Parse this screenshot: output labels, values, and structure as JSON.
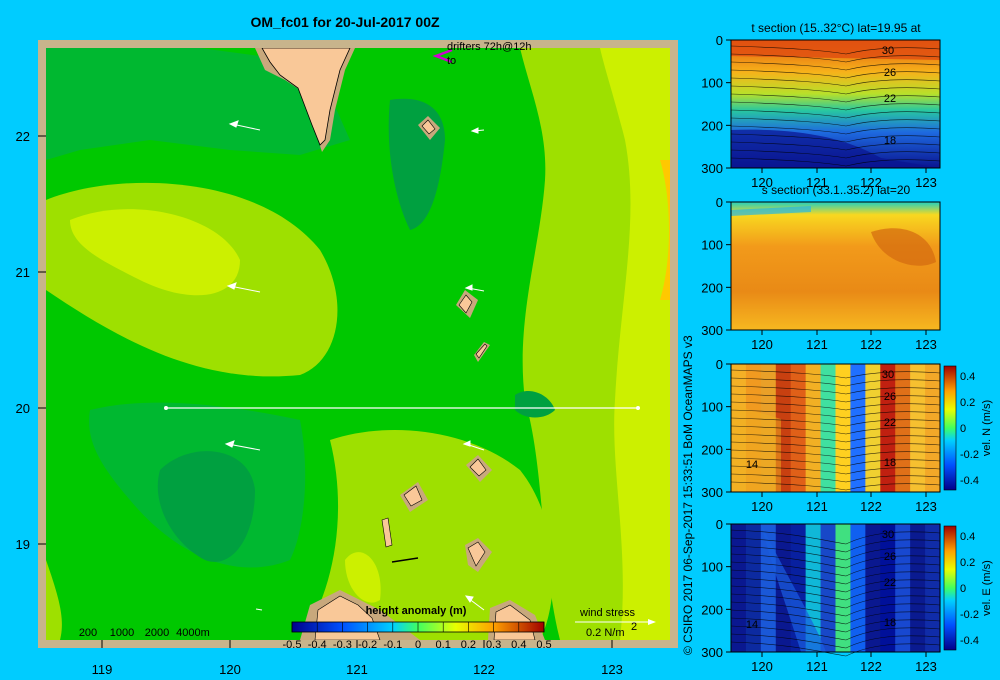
{
  "title": "OM_fc01 for 20-Jul-2017 00Z",
  "credit": "© CSIRO 2017   06-Sep-2017 15:33:51 BoM OceanMAPS v3",
  "map": {
    "x_ticks": [
      "119",
      "120",
      "121",
      "122",
      "123"
    ],
    "y_ticks": [
      "22",
      "21",
      "20",
      "19"
    ],
    "drifters_label": "drifters 72h@12h",
    "drifters_to": "to",
    "depth_legend": [
      "200",
      "1000",
      "2000",
      "4000m"
    ],
    "colorbar_title": "height anomaly (m)",
    "colorbar_ticks": [
      "-0.5",
      "-0.4",
      "-0.3",
      "-0.2",
      "-0.1",
      "0",
      "0.1",
      "0.2",
      "0.3",
      "0.4",
      "0.5"
    ],
    "wind_label": "wind stress",
    "wind_scale": "0.2 N/m",
    "wind_scale_sup": "2",
    "colors": {
      "land": "#f9c898",
      "shelf": "#c8a87c",
      "border": "#c8b48c",
      "low": "#008c00",
      "mid": "#00c800",
      "high": "#ccff00",
      "warm": "#ffc800"
    }
  },
  "panels": [
    {
      "title": "t section (15..32°C) lat=19.95 at",
      "y_ticks": [
        "0",
        "100",
        "200",
        "300"
      ],
      "x_ticks": [
        "120",
        "121",
        "122",
        "123"
      ],
      "contours": [
        "30",
        "26",
        "22",
        "18"
      ],
      "colorbar": null
    },
    {
      "title": "s section (33.1..35.2) lat=20",
      "y_ticks": [
        "0",
        "100",
        "200",
        "300"
      ],
      "x_ticks": [
        "120",
        "121",
        "122",
        "123"
      ],
      "contours": [],
      "colorbar": null
    },
    {
      "title": "",
      "y_ticks": [
        "0",
        "100",
        "200",
        "300"
      ],
      "x_ticks": [
        "120",
        "121",
        "122",
        "123"
      ],
      "contours": [
        "30",
        "26",
        "22",
        "18",
        "14"
      ],
      "colorbar": {
        "label": "vel. N (m/s)",
        "ticks": [
          "0.4",
          "0.2",
          "0",
          "-0.2",
          "-0.4"
        ]
      }
    },
    {
      "title": "",
      "y_ticks": [
        "0",
        "100",
        "200",
        "300"
      ],
      "x_ticks": [
        "120",
        "121",
        "122",
        "123"
      ],
      "contours": [
        "30",
        "26",
        "22",
        "18",
        "14"
      ],
      "colorbar": {
        "label": "vel. E (m/s)",
        "ticks": [
          "0.4",
          "0.2",
          "0",
          "-0.2",
          "-0.4"
        ]
      }
    }
  ]
}
